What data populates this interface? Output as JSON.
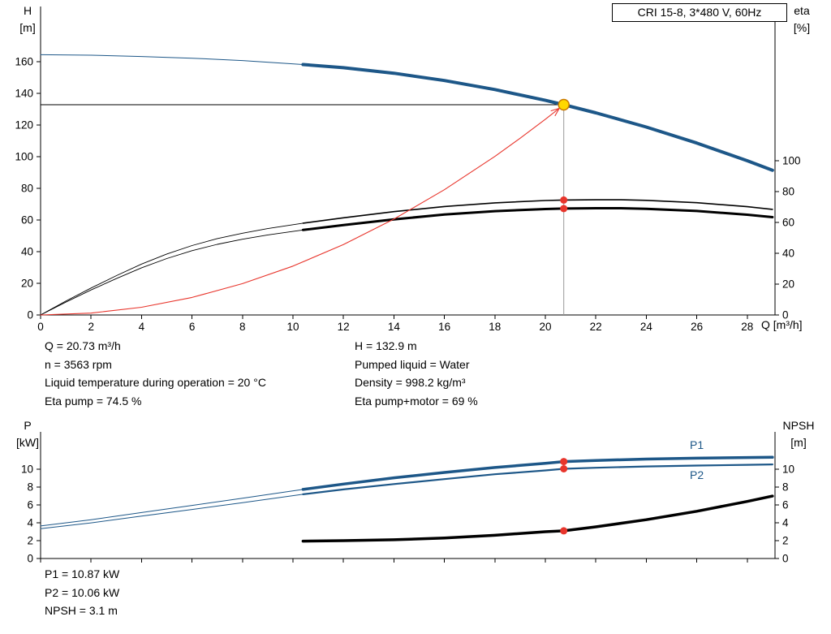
{
  "title_box": "CRI 15-8, 3*480 V, 60Hz",
  "top_chart_labels": {
    "y_left_title": "H",
    "y_left_unit": "[m]",
    "y_right_title": "eta",
    "y_right_unit": "[%]",
    "x_title": "Q [m³/h]"
  },
  "bottom_chart_labels": {
    "y_left_title": "P",
    "y_left_unit": "[kW]",
    "y_right_title": "NPSH",
    "y_right_unit": "[m]",
    "p1_label": "P1",
    "p2_label": "P2"
  },
  "top_annotations": {
    "left": [
      "Q = 20.73 m³/h",
      "n = 3563 rpm",
      "Liquid temperature during operation = 20 °C",
      "Eta pump = 74.5 %"
    ],
    "right": [
      "H = 132.9 m",
      "Pumped liquid = Water",
      "Density = 998.2 kg/m³",
      "Eta pump+motor = 69 %"
    ]
  },
  "bottom_annotations": [
    "P1 = 10.87 kW",
    "P2 = 10.06 kW",
    "NPSH = 3.1 m"
  ],
  "colors": {
    "curve_blue": "#1d5788",
    "black": "#000000",
    "red": "#e8352c",
    "duty_yellow": "#ffd800",
    "duty_ring": "#c87800",
    "crosshair_gray": "#999999"
  },
  "chart_data": [
    {
      "type": "line",
      "title": "CRI 15-8, 3*480 V, 60Hz",
      "xlabel": "Q [m³/h]",
      "ylabel_left": "H [m]",
      "ylabel_right": "eta [%]",
      "x_range": [
        0,
        29.1
      ],
      "y_left_range": [
        0,
        195
      ],
      "y_right_range": [
        0,
        200
      ],
      "x_ticks": [
        0,
        2,
        4,
        6,
        8,
        10,
        12,
        14,
        16,
        18,
        20,
        22,
        24,
        26,
        28
      ],
      "x_tick_labels": true,
      "y_left_ticks": [
        0,
        20,
        40,
        60,
        80,
        100,
        120,
        140,
        160
      ],
      "y_right_ticks": [
        0,
        20,
        40,
        60,
        80,
        100
      ],
      "grid": false,
      "crosshair": {
        "x": 20.73,
        "y": 132.9,
        "h_color": "#000000",
        "v_color": "#999999"
      },
      "series": [
        {
          "name": "head-curve-extrapolated",
          "axis": "left",
          "color": "#1d5788",
          "width": 1,
          "points": [
            [
              0,
              164.5
            ],
            [
              2,
              164.2
            ],
            [
              4,
              163.4
            ],
            [
              6,
              162.3
            ],
            [
              8,
              160.8
            ],
            [
              10.4,
              158.3
            ]
          ]
        },
        {
          "name": "head-curve",
          "axis": "left",
          "color": "#1d5788",
          "width": 4,
          "points": [
            [
              10.4,
              158.3
            ],
            [
              12,
              156.3
            ],
            [
              14,
              152.8
            ],
            [
              16,
              148.2
            ],
            [
              18,
              142.5
            ],
            [
              20,
              135.7
            ],
            [
              20.73,
              132.9
            ],
            [
              22,
              127.8
            ],
            [
              24,
              118.8
            ],
            [
              26,
              108.7
            ],
            [
              28,
              97.5
            ],
            [
              29,
              91.5
            ]
          ]
        },
        {
          "name": "eta-pump-extrapolated",
          "axis": "right",
          "color": "#000000",
          "width": 0.9,
          "points": [
            [
              0,
              0
            ],
            [
              1,
              9
            ],
            [
              2,
              17.5
            ],
            [
              3,
              25.5
            ],
            [
              4,
              33
            ],
            [
              5,
              39.5
            ],
            [
              6,
              45
            ],
            [
              7,
              49.5
            ],
            [
              8,
              53
            ],
            [
              9,
              56
            ],
            [
              10.4,
              59.5
            ]
          ]
        },
        {
          "name": "eta-pump",
          "axis": "right",
          "color": "#000000",
          "width": 1.6,
          "points": [
            [
              10.4,
              59.5
            ],
            [
              12,
              63
            ],
            [
              14,
              67
            ],
            [
              16,
              70.3
            ],
            [
              18,
              72.7
            ],
            [
              20,
              74.2
            ],
            [
              20.73,
              74.5
            ],
            [
              22,
              74.7
            ],
            [
              23,
              74.7
            ],
            [
              24,
              74.3
            ],
            [
              26,
              72.8
            ],
            [
              28,
              70.2
            ],
            [
              29,
              68.5
            ]
          ]
        },
        {
          "name": "eta-pump-motor-extrapolated",
          "axis": "right",
          "color": "#000000",
          "width": 0.9,
          "points": [
            [
              0,
              0
            ],
            [
              1,
              8.3
            ],
            [
              2,
              16.2
            ],
            [
              3,
              23.6
            ],
            [
              4,
              30.6
            ],
            [
              5,
              36.6
            ],
            [
              6,
              41.7
            ],
            [
              7,
              45.8
            ],
            [
              8,
              49.1
            ],
            [
              9,
              51.9
            ],
            [
              10.4,
              55.1
            ]
          ]
        },
        {
          "name": "eta-pump-motor",
          "axis": "right",
          "color": "#000000",
          "width": 3,
          "points": [
            [
              10.4,
              55.1
            ],
            [
              12,
              58.3
            ],
            [
              14,
              62
            ],
            [
              16,
              65.1
            ],
            [
              18,
              67.3
            ],
            [
              20,
              68.7
            ],
            [
              20.73,
              69
            ],
            [
              22,
              69.2
            ],
            [
              23,
              69.2
            ],
            [
              24,
              68.8
            ],
            [
              26,
              67.4
            ],
            [
              28,
              65
            ],
            [
              29,
              63.4
            ]
          ]
        },
        {
          "name": "system-curve",
          "axis": "left",
          "color": "#e8352c",
          "width": 1.1,
          "arrow_end": true,
          "points": [
            [
              0,
              0
            ],
            [
              2,
              1.2
            ],
            [
              4,
              4.9
            ],
            [
              6,
              11.1
            ],
            [
              8,
              19.8
            ],
            [
              10,
              30.9
            ],
            [
              12,
              44.5
            ],
            [
              14,
              60.6
            ],
            [
              16,
              79.2
            ],
            [
              18,
              100.2
            ],
            [
              19,
              111.7
            ],
            [
              20,
              123.7
            ],
            [
              20.4,
              128.7
            ],
            [
              20.73,
              132.9
            ]
          ]
        }
      ],
      "markers": [
        {
          "name": "duty-point",
          "axis": "left",
          "x": 20.73,
          "y": 132.9,
          "r": 6.5,
          "fill": "#ffd800",
          "stroke": "#c87800",
          "stroke_width": 1.5,
          "interactable": true
        },
        {
          "name": "eta-pump-point",
          "axis": "right",
          "x": 20.73,
          "y": 74.5,
          "r": 4.5,
          "fill": "#e8352c",
          "interactable": false
        },
        {
          "name": "eta-pump-motor-point",
          "axis": "right",
          "x": 20.73,
          "y": 69,
          "r": 4.5,
          "fill": "#e8352c",
          "interactable": false
        }
      ]
    },
    {
      "type": "line",
      "title": "",
      "xlabel": "",
      "ylabel_left": "P [kW]",
      "ylabel_right": "NPSH [m]",
      "x_range": [
        0,
        29.1
      ],
      "y_left_range": [
        0,
        14.2
      ],
      "y_right_range": [
        0,
        14.2
      ],
      "x_ticks": [
        0,
        2,
        4,
        6,
        8,
        10,
        12,
        14,
        16,
        18,
        20,
        22,
        24,
        26,
        28
      ],
      "x_tick_labels": false,
      "y_left_ticks": [
        0,
        2,
        4,
        6,
        8,
        10
      ],
      "y_right_ticks": [
        0,
        2,
        4,
        6,
        8,
        10
      ],
      "grid": false,
      "series": [
        {
          "name": "p1-curve-extrapolated",
          "axis": "left",
          "color": "#1d5788",
          "width": 1,
          "points": [
            [
              0,
              3.65
            ],
            [
              2,
              4.35
            ],
            [
              4,
              5.15
            ],
            [
              6,
              5.95
            ],
            [
              8,
              6.75
            ],
            [
              10.4,
              7.75
            ]
          ]
        },
        {
          "name": "p1-curve",
          "axis": "left",
          "color": "#1d5788",
          "width": 3.5,
          "points": [
            [
              10.4,
              7.75
            ],
            [
              12,
              8.35
            ],
            [
              14,
              9.05
            ],
            [
              16,
              9.65
            ],
            [
              18,
              10.2
            ],
            [
              20,
              10.68
            ],
            [
              20.73,
              10.87
            ],
            [
              22,
              11.0
            ],
            [
              24,
              11.15
            ],
            [
              26,
              11.25
            ],
            [
              28,
              11.32
            ],
            [
              29,
              11.35
            ]
          ]
        },
        {
          "name": "p2-curve-extrapolated",
          "axis": "left",
          "color": "#1d5788",
          "width": 1,
          "points": [
            [
              0,
              3.35
            ],
            [
              2,
              4.0
            ],
            [
              4,
              4.75
            ],
            [
              6,
              5.5
            ],
            [
              8,
              6.25
            ],
            [
              10.4,
              7.2
            ]
          ]
        },
        {
          "name": "p2-curve",
          "axis": "left",
          "color": "#1d5788",
          "width": 2.2,
          "points": [
            [
              10.4,
              7.2
            ],
            [
              12,
              7.75
            ],
            [
              14,
              8.35
            ],
            [
              16,
              8.9
            ],
            [
              18,
              9.45
            ],
            [
              20,
              9.88
            ],
            [
              20.73,
              10.06
            ],
            [
              22,
              10.18
            ],
            [
              24,
              10.32
            ],
            [
              26,
              10.42
            ],
            [
              28,
              10.5
            ],
            [
              29,
              10.55
            ]
          ]
        },
        {
          "name": "npsh-curve",
          "axis": "right",
          "color": "#000000",
          "width": 3.5,
          "points": [
            [
              10.4,
              1.95
            ],
            [
              12,
              2.0
            ],
            [
              14,
              2.1
            ],
            [
              16,
              2.3
            ],
            [
              18,
              2.6
            ],
            [
              20,
              3.0
            ],
            [
              20.73,
              3.1
            ],
            [
              22,
              3.55
            ],
            [
              24,
              4.35
            ],
            [
              26,
              5.3
            ],
            [
              28,
              6.4
            ],
            [
              29,
              7.0
            ]
          ]
        }
      ],
      "markers": [
        {
          "name": "p1-point",
          "axis": "left",
          "x": 20.73,
          "y": 10.87,
          "r": 4.5,
          "fill": "#e8352c",
          "interactable": false
        },
        {
          "name": "p2-point",
          "axis": "left",
          "x": 20.73,
          "y": 10.06,
          "r": 4.5,
          "fill": "#e8352c",
          "interactable": false
        },
        {
          "name": "npsh-point",
          "axis": "right",
          "x": 20.73,
          "y": 3.1,
          "r": 4.5,
          "fill": "#e8352c",
          "interactable": false
        }
      ]
    }
  ]
}
